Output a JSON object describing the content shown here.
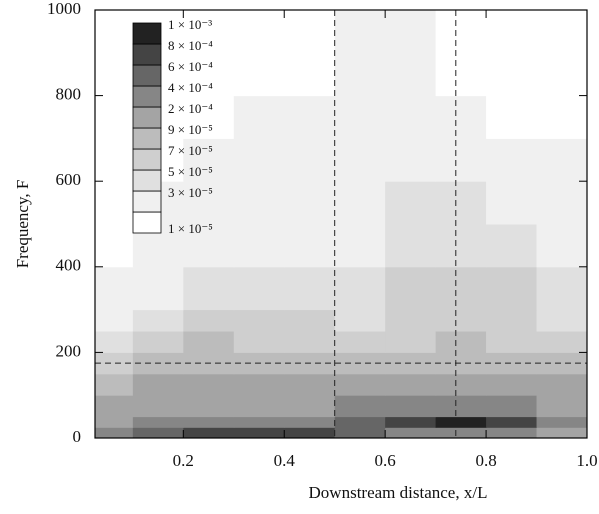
{
  "chart_data": {
    "type": "contour",
    "xlabel": "Downstream distance, x/L",
    "ylabel": "Frequency, F",
    "xlim": [
      0.025,
      1.0
    ],
    "ylim": [
      0,
      1000
    ],
    "xticks": [
      0.2,
      0.4,
      0.6,
      0.8,
      {
        "value": 1.0,
        "label": "1.0"
      }
    ],
    "yticks": [
      0,
      200,
      400,
      600,
      800,
      1000
    ],
    "xbins": [
      0.025,
      0.1,
      0.2,
      0.3,
      0.4,
      0.5,
      0.6,
      0.7,
      0.8,
      0.9,
      1.0
    ],
    "ybins": [
      0,
      25,
      50,
      100,
      150,
      200,
      250,
      300,
      400,
      500,
      600,
      700,
      800,
      1000
    ],
    "levels": [
      {
        "value": 1e-05,
        "label": "1 × 10⁻⁵",
        "color": "#ffffff"
      },
      {
        "value": 3e-05,
        "label": "3 × 10⁻⁵",
        "color": "#f0f0f0"
      },
      {
        "value": 5e-05,
        "label": "5 × 10⁻⁵",
        "color": "#e0e0e0"
      },
      {
        "value": 7e-05,
        "label": "7 × 10⁻⁵",
        "color": "#cfcfcf"
      },
      {
        "value": 9e-05,
        "label": "9 × 10⁻⁵",
        "color": "#bcbcbc"
      },
      {
        "value": 0.0002,
        "label": "2 × 10⁻⁴",
        "color": "#a4a4a4"
      },
      {
        "value": 0.0004,
        "label": "4 × 10⁻⁴",
        "color": "#868686"
      },
      {
        "value": 0.0006,
        "label": "6 × 10⁻⁴",
        "color": "#666666"
      },
      {
        "value": 0.0008,
        "label": "8 × 10⁻⁴",
        "color": "#444444"
      },
      {
        "value": 0.001,
        "label": "1 × 10⁻³",
        "color": "#222222"
      }
    ],
    "values": [
      [
        0.0004,
        0.0006,
        0.0008,
        0.0008,
        0.0008,
        0.0006,
        0.0004,
        0.0004,
        0.0004,
        0.0002
      ],
      [
        0.0002,
        0.0004,
        0.0004,
        0.0004,
        0.0004,
        0.0006,
        0.0008,
        0.001,
        0.0008,
        0.0004
      ],
      [
        0.0002,
        0.0002,
        0.0002,
        0.0002,
        0.0002,
        0.0004,
        0.0004,
        0.0004,
        0.0004,
        0.0002
      ],
      [
        9e-05,
        0.0002,
        0.0002,
        0.0002,
        0.0002,
        0.0002,
        0.0002,
        0.0002,
        0.0002,
        0.0002
      ],
      [
        7e-05,
        9e-05,
        9e-05,
        9e-05,
        9e-05,
        9e-05,
        9e-05,
        9e-05,
        9e-05,
        9e-05
      ],
      [
        5e-05,
        7e-05,
        9e-05,
        7e-05,
        7e-05,
        7e-05,
        7e-05,
        9e-05,
        7e-05,
        7e-05
      ],
      [
        3e-05,
        5e-05,
        7e-05,
        7e-05,
        7e-05,
        5e-05,
        7e-05,
        7e-05,
        7e-05,
        5e-05
      ],
      [
        3e-05,
        3e-05,
        5e-05,
        5e-05,
        5e-05,
        5e-05,
        7e-05,
        7e-05,
        7e-05,
        5e-05
      ],
      [
        1e-05,
        3e-05,
        3e-05,
        3e-05,
        3e-05,
        3e-05,
        5e-05,
        5e-05,
        5e-05,
        3e-05
      ],
      [
        1e-05,
        3e-05,
        3e-05,
        3e-05,
        3e-05,
        3e-05,
        5e-05,
        5e-05,
        3e-05,
        3e-05
      ],
      [
        1e-05,
        1e-05,
        3e-05,
        3e-05,
        3e-05,
        3e-05,
        3e-05,
        3e-05,
        3e-05,
        3e-05
      ],
      [
        1e-05,
        1e-05,
        1e-05,
        3e-05,
        3e-05,
        3e-05,
        3e-05,
        3e-05,
        1e-05,
        1e-05
      ],
      [
        1e-05,
        1e-05,
        1e-05,
        1e-05,
        1e-05,
        3e-05,
        3e-05,
        1e-05,
        1e-05,
        1e-05
      ]
    ],
    "vlines": [
      0.5,
      0.74
    ],
    "hlines": [
      175
    ]
  }
}
